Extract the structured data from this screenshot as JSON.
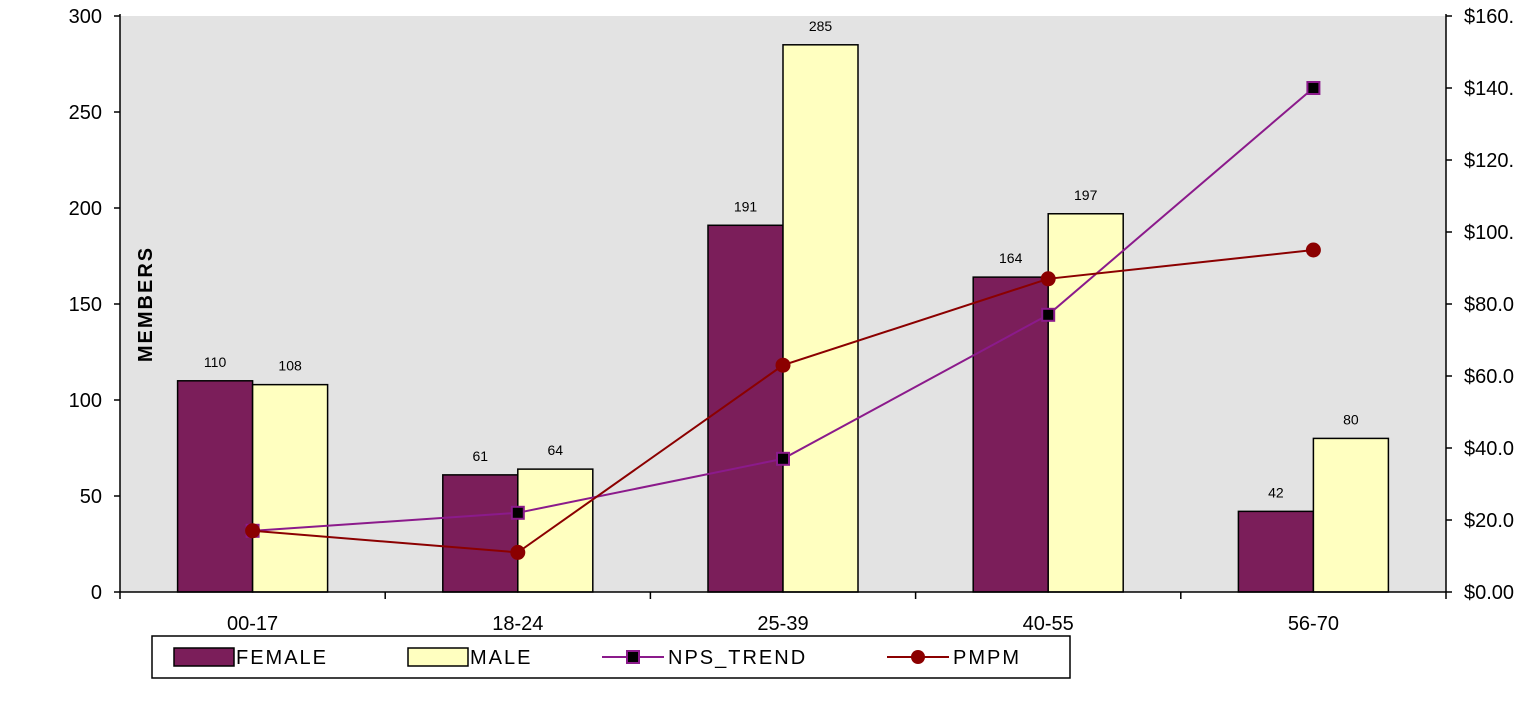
{
  "chart_data": {
    "type": "bar",
    "categories": [
      "00-17",
      "18-24",
      "25-39",
      "40-55",
      "56-70"
    ],
    "series": [
      {
        "name": "FEMALE",
        "type": "bar",
        "axis": "left",
        "values": [
          110,
          61,
          191,
          164,
          42
        ],
        "color": "#7b1e5a"
      },
      {
        "name": "MALE",
        "type": "bar",
        "axis": "left",
        "values": [
          108,
          64,
          285,
          197,
          80
        ],
        "color": "#ffffc0"
      },
      {
        "name": "NPS_TREND",
        "type": "line",
        "axis": "right",
        "values": [
          17,
          22,
          37,
          77,
          140
        ],
        "color": "#8b1a8b",
        "marker": "square"
      },
      {
        "name": "PMPM",
        "type": "line",
        "axis": "right",
        "values": [
          17,
          11,
          63,
          87,
          95
        ],
        "color": "#8b0000",
        "marker": "circle"
      }
    ],
    "ylabel": "MEMBERS",
    "ylim": [
      0,
      300
    ],
    "yticks": [
      0,
      50,
      100,
      150,
      200,
      250,
      300
    ],
    "y2lim": [
      0,
      160
    ],
    "y2ticks": [
      "$0.00",
      "$20.0",
      "$40.0",
      "$60.0",
      "$80.0",
      "$100.",
      "$120.",
      "$140.",
      "$160."
    ],
    "plot_background": "#e3e3e3",
    "grid": false,
    "legend_position": "bottom"
  }
}
